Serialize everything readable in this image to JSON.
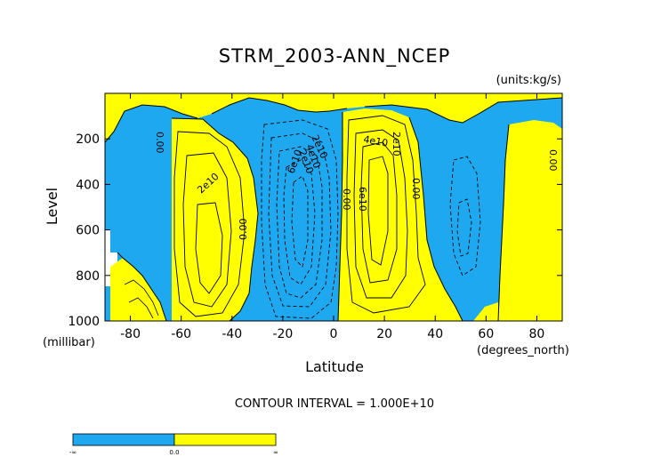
{
  "chart_data": {
    "type": "contour",
    "title": "STRM_2003-ANN_NCEP",
    "units_label": "(units:kg/s)",
    "xlabel": "Latitude",
    "x_units_label": "(degrees_north)",
    "ylabel": "Level",
    "y_units_label": "(millibar)",
    "xlim": [
      -90,
      90
    ],
    "ylim": [
      1000,
      0
    ],
    "x_ticks": [
      -80,
      -60,
      -40,
      -20,
      0,
      20,
      40,
      60,
      80
    ],
    "y_ticks": [
      200,
      400,
      600,
      800,
      1000
    ],
    "x_tick_labels": [
      "-80",
      "-60",
      "-40",
      "-20",
      "0",
      "20",
      "40",
      "60",
      "80"
    ],
    "y_tick_labels": [
      "200",
      "400",
      "600",
      "800",
      "1000"
    ],
    "contour_interval_text": "CONTOUR INTERVAL = 1.000E+10",
    "contour_interval": 10000000000,
    "fill_colors": {
      "negative": "#1ea8f0",
      "positive": "#ffff00"
    },
    "colorbar": {
      "labels": [
        "-∞",
        "0.0",
        "∞"
      ]
    },
    "contour_labels": [
      "0.00",
      "2e10",
      "0.00",
      "2e10",
      "6e10",
      "2e10",
      "4e10",
      "0.00",
      "6e10",
      "4e10",
      "2e10",
      "0.00",
      "0.00"
    ],
    "cells": [
      {
        "name": "southern-polar-cell",
        "sign": "negative",
        "lat_center": -79,
        "level_center": 650,
        "peak_label": ""
      },
      {
        "name": "southern-ferrel-cell",
        "sign": "positive",
        "lat_center": -50,
        "level_center": 640,
        "peak_label": "2e10"
      },
      {
        "name": "hadley-south-branch",
        "sign": "negative",
        "lat_center": -13,
        "level_center": 500,
        "peak_label": "6e10"
      },
      {
        "name": "hadley-north-branch",
        "sign": "positive",
        "lat_center": 17,
        "level_center": 450,
        "peak_label": "6e10"
      },
      {
        "name": "northern-ferrel-cell",
        "sign": "negative",
        "lat_center": 50,
        "level_center": 600,
        "peak_label": ""
      },
      {
        "name": "northern-polar-cell",
        "sign": "positive",
        "lat_center": 80,
        "level_center": 550,
        "peak_label": ""
      }
    ]
  }
}
